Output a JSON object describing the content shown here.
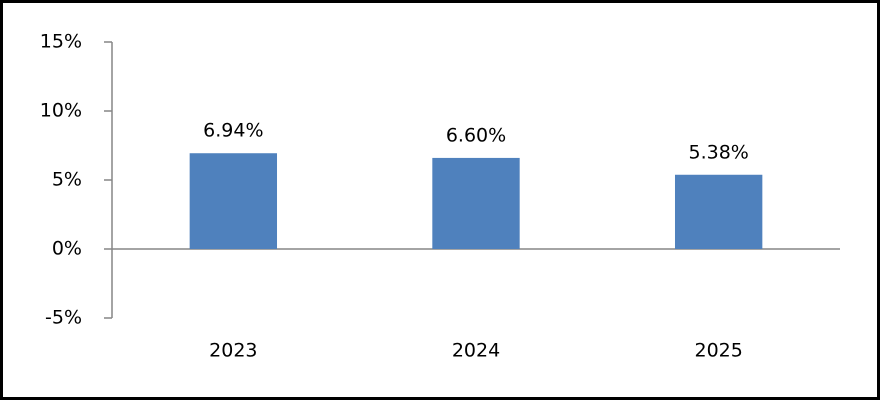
{
  "chart_data": {
    "type": "bar",
    "categories": [
      "2023",
      "2024",
      "2025"
    ],
    "values": [
      6.94,
      6.6,
      5.38
    ],
    "value_labels": [
      "6.94%",
      "6.60%",
      "5.38%"
    ],
    "color": "#4f81bd",
    "ylim": [
      -5,
      15
    ],
    "yticks": [
      {
        "value": -5,
        "label": "-5%"
      },
      {
        "value": 0,
        "label": "0%"
      },
      {
        "value": 5,
        "label": "5%"
      },
      {
        "value": 10,
        "label": "10%"
      },
      {
        "value": 15,
        "label": "15%"
      }
    ],
    "grid": false
  }
}
